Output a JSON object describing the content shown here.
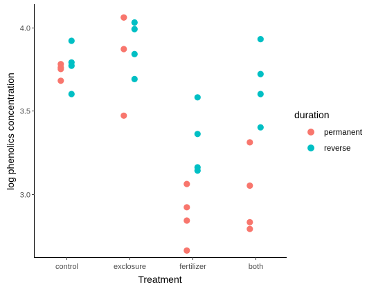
{
  "chart_data": {
    "type": "scatter",
    "xlabel": "Treatment",
    "ylabel": "log phenolics concentration",
    "categories": [
      "control",
      "exclosure",
      "fertilizer",
      "both"
    ],
    "ylim": [
      2.62,
      4.14
    ],
    "yticks": [
      3.0,
      3.5,
      4.0
    ],
    "ytick_labels": [
      "3.0",
      "3.5",
      "4.0"
    ],
    "grid": false,
    "legend": {
      "title": "duration",
      "position": "right",
      "entries": [
        "permanent",
        "reverse"
      ]
    },
    "series": [
      {
        "name": "permanent",
        "color": "#F8766D",
        "points": [
          {
            "category": "control",
            "y": 3.78
          },
          {
            "category": "control",
            "y": 3.76
          },
          {
            "category": "control",
            "y": 3.75
          },
          {
            "category": "control",
            "y": 3.68
          },
          {
            "category": "exclosure",
            "y": 4.06
          },
          {
            "category": "exclosure",
            "y": 4.06
          },
          {
            "category": "exclosure",
            "y": 3.87
          },
          {
            "category": "exclosure",
            "y": 3.47
          },
          {
            "category": "fertilizer",
            "y": 3.06
          },
          {
            "category": "fertilizer",
            "y": 2.92
          },
          {
            "category": "fertilizer",
            "y": 2.84
          },
          {
            "category": "fertilizer",
            "y": 2.66
          },
          {
            "category": "both",
            "y": 3.31
          },
          {
            "category": "both",
            "y": 3.05
          },
          {
            "category": "both",
            "y": 2.83
          },
          {
            "category": "both",
            "y": 2.79
          }
        ]
      },
      {
        "name": "reverse",
        "color": "#00BFC4",
        "points": [
          {
            "category": "control",
            "y": 3.92
          },
          {
            "category": "control",
            "y": 3.79
          },
          {
            "category": "control",
            "y": 3.77
          },
          {
            "category": "control",
            "y": 3.6
          },
          {
            "category": "exclosure",
            "y": 4.03
          },
          {
            "category": "exclosure",
            "y": 3.99
          },
          {
            "category": "exclosure",
            "y": 3.84
          },
          {
            "category": "exclosure",
            "y": 3.69
          },
          {
            "category": "fertilizer",
            "y": 3.58
          },
          {
            "category": "fertilizer",
            "y": 3.36
          },
          {
            "category": "fertilizer",
            "y": 3.16
          },
          {
            "category": "fertilizer",
            "y": 3.14
          },
          {
            "category": "both",
            "y": 3.93
          },
          {
            "category": "both",
            "y": 3.72
          },
          {
            "category": "both",
            "y": 3.6
          },
          {
            "category": "both",
            "y": 3.4
          }
        ]
      }
    ]
  }
}
